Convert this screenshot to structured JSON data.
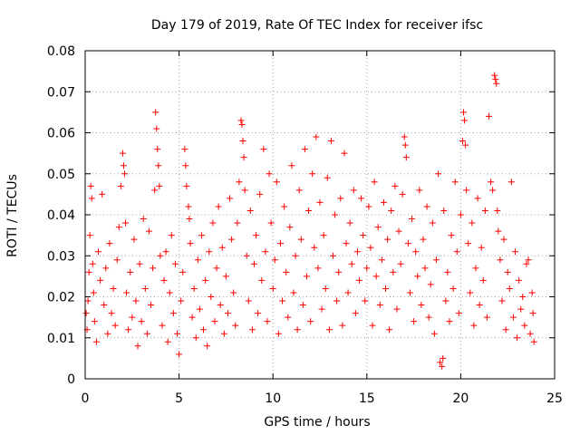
{
  "chart_data": {
    "type": "scatter",
    "title": "Day 179 of 2019, Rate Of TEC Index for receiver ifsc",
    "xlabel": "GPS time / hours",
    "ylabel": "ROTI / TECUs",
    "xlim": [
      0,
      25
    ],
    "ylim": [
      0,
      0.08
    ],
    "x_ticks": [
      0,
      5,
      10,
      15,
      20,
      25
    ],
    "x_tick_labels": [
      "0",
      "5",
      "10",
      "15",
      "20",
      "25"
    ],
    "y_ticks": [
      0,
      0.01,
      0.02,
      0.03,
      0.04,
      0.05,
      0.06,
      0.07,
      0.08
    ],
    "y_tick_labels": [
      "0",
      "0.01",
      "0.02",
      "0.03",
      "0.04",
      "0.05",
      "0.06",
      "0.07",
      "0.08"
    ],
    "grid": true,
    "marker": "+",
    "marker_color": "#ff0000",
    "series": [
      {
        "name": "ROTI",
        "points": [
          [
            0.05,
            0.016
          ],
          [
            0.1,
            0.012
          ],
          [
            0.15,
            0.019
          ],
          [
            0.2,
            0.026
          ],
          [
            0.25,
            0.035
          ],
          [
            0.3,
            0.047
          ],
          [
            0.35,
            0.044
          ],
          [
            0.4,
            0.028
          ],
          [
            0.45,
            0.021
          ],
          [
            0.5,
            0.014
          ],
          [
            0.6,
            0.009
          ],
          [
            0.7,
            0.031
          ],
          [
            0.8,
            0.024
          ],
          [
            0.9,
            0.045
          ],
          [
            1.0,
            0.018
          ],
          [
            1.1,
            0.027
          ],
          [
            1.2,
            0.011
          ],
          [
            1.3,
            0.033
          ],
          [
            1.4,
            0.016
          ],
          [
            1.5,
            0.022
          ],
          [
            1.6,
            0.013
          ],
          [
            1.7,
            0.029
          ],
          [
            1.8,
            0.037
          ],
          [
            1.9,
            0.047
          ],
          [
            2.0,
            0.055
          ],
          [
            2.05,
            0.052
          ],
          [
            2.1,
            0.05
          ],
          [
            2.15,
            0.038
          ],
          [
            2.2,
            0.021
          ],
          [
            2.3,
            0.012
          ],
          [
            2.4,
            0.026
          ],
          [
            2.5,
            0.015
          ],
          [
            2.6,
            0.034
          ],
          [
            2.7,
            0.019
          ],
          [
            2.8,
            0.008
          ],
          [
            2.9,
            0.028
          ],
          [
            3.0,
            0.014
          ],
          [
            3.1,
            0.039
          ],
          [
            3.2,
            0.022
          ],
          [
            3.3,
            0.011
          ],
          [
            3.4,
            0.036
          ],
          [
            3.5,
            0.018
          ],
          [
            3.6,
            0.027
          ],
          [
            3.7,
            0.046
          ],
          [
            3.75,
            0.065
          ],
          [
            3.8,
            0.061
          ],
          [
            3.85,
            0.056
          ],
          [
            3.9,
            0.052
          ],
          [
            3.95,
            0.047
          ],
          [
            4.0,
            0.03
          ],
          [
            4.1,
            0.013
          ],
          [
            4.2,
            0.024
          ],
          [
            4.3,
            0.031
          ],
          [
            4.4,
            0.009
          ],
          [
            4.5,
            0.021
          ],
          [
            4.6,
            0.035
          ],
          [
            4.7,
            0.016
          ],
          [
            4.8,
            0.028
          ],
          [
            4.9,
            0.011
          ],
          [
            5.0,
            0.006
          ],
          [
            5.1,
            0.019
          ],
          [
            5.2,
            0.026
          ],
          [
            5.3,
            0.056
          ],
          [
            5.35,
            0.052
          ],
          [
            5.4,
            0.047
          ],
          [
            5.5,
            0.042
          ],
          [
            5.55,
            0.039
          ],
          [
            5.6,
            0.033
          ],
          [
            5.7,
            0.015
          ],
          [
            5.8,
            0.022
          ],
          [
            5.9,
            0.01
          ],
          [
            6.0,
            0.029
          ],
          [
            6.1,
            0.017
          ],
          [
            6.2,
            0.035
          ],
          [
            6.3,
            0.012
          ],
          [
            6.4,
            0.024
          ],
          [
            6.5,
            0.008
          ],
          [
            6.6,
            0.031
          ],
          [
            6.7,
            0.02
          ],
          [
            6.8,
            0.038
          ],
          [
            6.9,
            0.014
          ],
          [
            7.0,
            0.027
          ],
          [
            7.1,
            0.042
          ],
          [
            7.2,
            0.018
          ],
          [
            7.3,
            0.032
          ],
          [
            7.4,
            0.011
          ],
          [
            7.5,
            0.025
          ],
          [
            7.6,
            0.016
          ],
          [
            7.7,
            0.044
          ],
          [
            7.8,
            0.034
          ],
          [
            7.9,
            0.021
          ],
          [
            8.0,
            0.013
          ],
          [
            8.1,
            0.038
          ],
          [
            8.2,
            0.048
          ],
          [
            8.3,
            0.063
          ],
          [
            8.35,
            0.062
          ],
          [
            8.4,
            0.058
          ],
          [
            8.45,
            0.054
          ],
          [
            8.5,
            0.046
          ],
          [
            8.6,
            0.03
          ],
          [
            8.7,
            0.019
          ],
          [
            8.8,
            0.041
          ],
          [
            8.9,
            0.012
          ],
          [
            9.0,
            0.028
          ],
          [
            9.1,
            0.035
          ],
          [
            9.2,
            0.016
          ],
          [
            9.3,
            0.045
          ],
          [
            9.4,
            0.024
          ],
          [
            9.5,
            0.056
          ],
          [
            9.6,
            0.031
          ],
          [
            9.7,
            0.014
          ],
          [
            9.8,
            0.05
          ],
          [
            9.9,
            0.038
          ],
          [
            10.0,
            0.022
          ],
          [
            10.1,
            0.029
          ],
          [
            10.2,
            0.048
          ],
          [
            10.3,
            0.011
          ],
          [
            10.4,
            0.033
          ],
          [
            10.5,
            0.019
          ],
          [
            10.6,
            0.042
          ],
          [
            10.7,
            0.026
          ],
          [
            10.8,
            0.015
          ],
          [
            10.9,
            0.037
          ],
          [
            11.0,
            0.052
          ],
          [
            11.1,
            0.021
          ],
          [
            11.2,
            0.03
          ],
          [
            11.3,
            0.012
          ],
          [
            11.4,
            0.046
          ],
          [
            11.5,
            0.034
          ],
          [
            11.6,
            0.018
          ],
          [
            11.7,
            0.056
          ],
          [
            11.8,
            0.025
          ],
          [
            11.9,
            0.041
          ],
          [
            12.0,
            0.014
          ],
          [
            12.1,
            0.05
          ],
          [
            12.2,
            0.032
          ],
          [
            12.3,
            0.059
          ],
          [
            12.4,
            0.027
          ],
          [
            12.5,
            0.043
          ],
          [
            12.6,
            0.017
          ],
          [
            12.7,
            0.035
          ],
          [
            12.8,
            0.022
          ],
          [
            12.9,
            0.049
          ],
          [
            13.0,
            0.012
          ],
          [
            13.1,
            0.058
          ],
          [
            13.2,
            0.03
          ],
          [
            13.3,
            0.04
          ],
          [
            13.4,
            0.019
          ],
          [
            13.5,
            0.026
          ],
          [
            13.6,
            0.044
          ],
          [
            13.7,
            0.013
          ],
          [
            13.8,
            0.055
          ],
          [
            13.9,
            0.033
          ],
          [
            14.0,
            0.021
          ],
          [
            14.1,
            0.038
          ],
          [
            14.2,
            0.028
          ],
          [
            14.3,
            0.046
          ],
          [
            14.4,
            0.016
          ],
          [
            14.5,
            0.031
          ],
          [
            14.6,
            0.024
          ],
          [
            14.7,
            0.044
          ],
          [
            14.8,
            0.035
          ],
          [
            14.9,
            0.019
          ],
          [
            15.0,
            0.027
          ],
          [
            15.1,
            0.042
          ],
          [
            15.2,
            0.032
          ],
          [
            15.3,
            0.013
          ],
          [
            15.4,
            0.048
          ],
          [
            15.5,
            0.025
          ],
          [
            15.6,
            0.037
          ],
          [
            15.7,
            0.018
          ],
          [
            15.8,
            0.029
          ],
          [
            15.9,
            0.043
          ],
          [
            16.0,
            0.022
          ],
          [
            16.1,
            0.034
          ],
          [
            16.2,
            0.012
          ],
          [
            16.3,
            0.041
          ],
          [
            16.4,
            0.026
          ],
          [
            16.5,
            0.047
          ],
          [
            16.6,
            0.017
          ],
          [
            16.7,
            0.036
          ],
          [
            16.8,
            0.028
          ],
          [
            16.9,
            0.045
          ],
          [
            17.0,
            0.059
          ],
          [
            17.05,
            0.057
          ],
          [
            17.1,
            0.054
          ],
          [
            17.2,
            0.033
          ],
          [
            17.3,
            0.021
          ],
          [
            17.4,
            0.039
          ],
          [
            17.5,
            0.014
          ],
          [
            17.6,
            0.031
          ],
          [
            17.7,
            0.025
          ],
          [
            17.8,
            0.046
          ],
          [
            17.9,
            0.018
          ],
          [
            18.0,
            0.034
          ],
          [
            18.1,
            0.027
          ],
          [
            18.2,
            0.042
          ],
          [
            18.3,
            0.015
          ],
          [
            18.4,
            0.023
          ],
          [
            18.5,
            0.038
          ],
          [
            18.6,
            0.011
          ],
          [
            18.7,
            0.029
          ],
          [
            18.8,
            0.05
          ],
          [
            18.9,
            0.004
          ],
          [
            19.0,
            0.003
          ],
          [
            19.05,
            0.005
          ],
          [
            19.1,
            0.041
          ],
          [
            19.2,
            0.019
          ],
          [
            19.3,
            0.026
          ],
          [
            19.4,
            0.014
          ],
          [
            19.5,
            0.035
          ],
          [
            19.6,
            0.022
          ],
          [
            19.7,
            0.048
          ],
          [
            19.8,
            0.031
          ],
          [
            19.9,
            0.016
          ],
          [
            20.0,
            0.04
          ],
          [
            20.1,
            0.058
          ],
          [
            20.15,
            0.065
          ],
          [
            20.2,
            0.063
          ],
          [
            20.25,
            0.057
          ],
          [
            20.3,
            0.046
          ],
          [
            20.4,
            0.033
          ],
          [
            20.5,
            0.021
          ],
          [
            20.6,
            0.038
          ],
          [
            20.7,
            0.013
          ],
          [
            20.8,
            0.027
          ],
          [
            20.9,
            0.044
          ],
          [
            21.0,
            0.018
          ],
          [
            21.1,
            0.032
          ],
          [
            21.2,
            0.024
          ],
          [
            21.3,
            0.041
          ],
          [
            21.4,
            0.015
          ],
          [
            21.5,
            0.064
          ],
          [
            21.6,
            0.048
          ],
          [
            21.7,
            0.046
          ],
          [
            21.8,
            0.074
          ],
          [
            21.85,
            0.073
          ],
          [
            21.9,
            0.072
          ],
          [
            21.95,
            0.041
          ],
          [
            22.0,
            0.036
          ],
          [
            22.1,
            0.029
          ],
          [
            22.2,
            0.019
          ],
          [
            22.3,
            0.034
          ],
          [
            22.4,
            0.012
          ],
          [
            22.5,
            0.026
          ],
          [
            22.6,
            0.022
          ],
          [
            22.7,
            0.048
          ],
          [
            22.8,
            0.015
          ],
          [
            22.9,
            0.031
          ],
          [
            23.0,
            0.01
          ],
          [
            23.1,
            0.024
          ],
          [
            23.2,
            0.017
          ],
          [
            23.3,
            0.02
          ],
          [
            23.4,
            0.013
          ],
          [
            23.5,
            0.028
          ],
          [
            23.6,
            0.029
          ],
          [
            23.7,
            0.011
          ],
          [
            23.8,
            0.021
          ],
          [
            23.85,
            0.016
          ],
          [
            23.9,
            0.009
          ]
        ]
      }
    ]
  }
}
